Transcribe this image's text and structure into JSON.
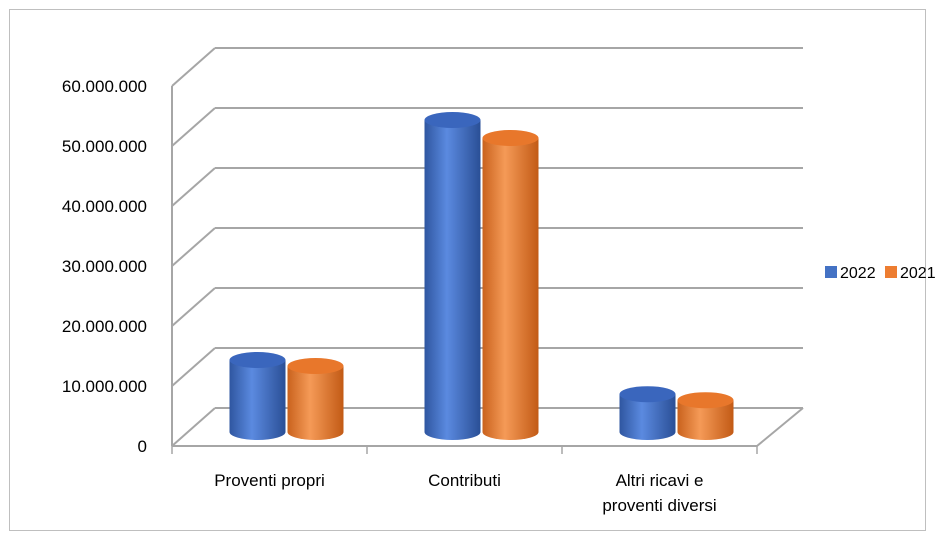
{
  "chart_data": {
    "type": "bar",
    "categories": [
      "Proventi propri",
      "Contributi",
      "Altri ricavi e proventi diversi"
    ],
    "category_lines": [
      [
        "Proventi propri"
      ],
      [
        "Contributi"
      ],
      [
        "Altri ricavi e",
        "proventi diversi"
      ]
    ],
    "series": [
      {
        "name": "2022",
        "values": [
          12000000,
          52000000,
          6300000
        ],
        "color": "#4472C4"
      },
      {
        "name": "2021",
        "values": [
          11000000,
          49000000,
          5300000
        ],
        "color": "#ED7D31"
      }
    ],
    "yticks": [
      "0",
      "10.000.000",
      "20.000.000",
      "30.000.000",
      "40.000.000",
      "50.000.000",
      "60.000.000"
    ],
    "ylim": [
      0,
      60000000
    ],
    "legend_position": "right",
    "grid": true,
    "style": "3d-cylinder"
  }
}
